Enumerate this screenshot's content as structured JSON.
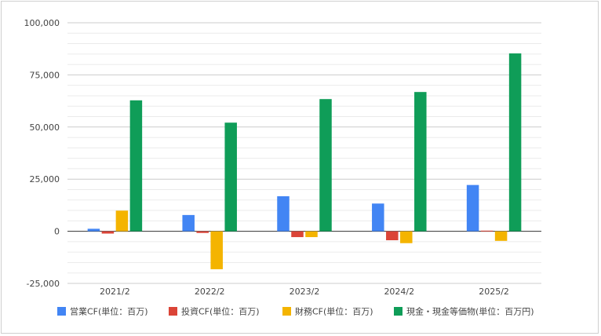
{
  "chart_data": {
    "type": "bar",
    "categories": [
      "2021/2",
      "2022/2",
      "2023/2",
      "2024/2",
      "2025/2"
    ],
    "series": [
      {
        "name": "営業CF(単位：百万)",
        "color": "#4285F4",
        "values": [
          1200,
          7800,
          16800,
          13300,
          22200
        ]
      },
      {
        "name": "投資CF(単位：百万)",
        "color": "#DB4437",
        "values": [
          -1100,
          -800,
          -2800,
          -4300,
          300
        ]
      },
      {
        "name": "財務CF(単位：百万)",
        "color": "#F4B400",
        "values": [
          9900,
          -18200,
          -2800,
          -5700,
          -4600
        ]
      },
      {
        "name": "現金・現金等価物(単位：百万円)",
        "color": "#0F9D58",
        "values": [
          62800,
          52100,
          63400,
          66800,
          85300
        ]
      }
    ],
    "yticks": [
      "100,000",
      "75,000",
      "50,000",
      "25,000",
      "0",
      "-25,000"
    ],
    "ylim": [
      -25000,
      100000
    ],
    "grid": true,
    "legend": "bottom",
    "title": "",
    "xlabel": "",
    "ylabel": ""
  }
}
